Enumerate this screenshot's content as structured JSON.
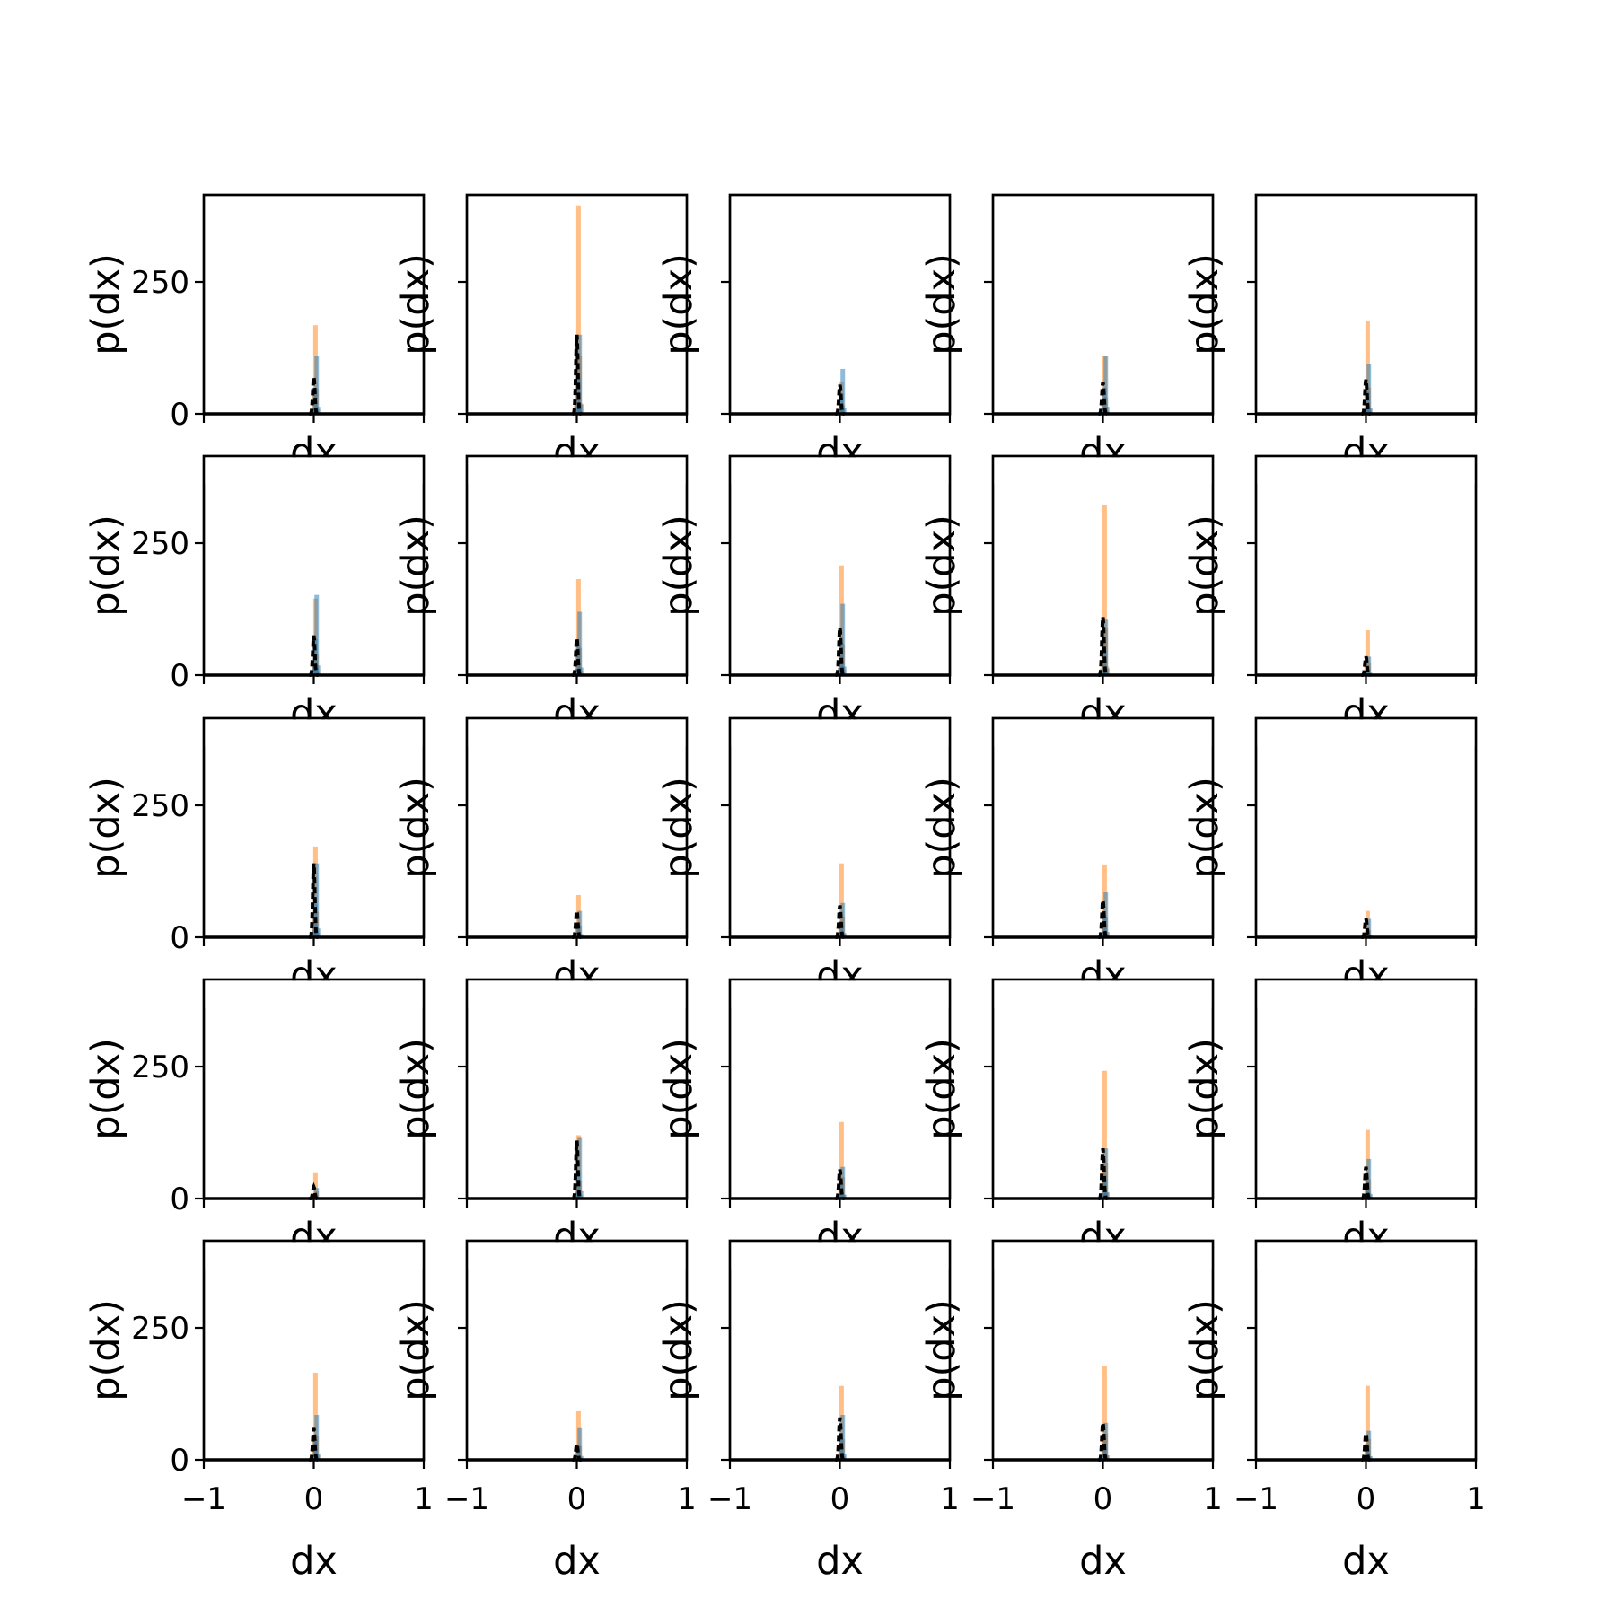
{
  "chart_data": {
    "type": "histogram-grid",
    "rows": 5,
    "cols": 5,
    "xlabel": "dx",
    "ylabel": "p(dx)",
    "xlim": [
      -1,
      1
    ],
    "ylim": [
      0,
      415
    ],
    "xticks": [
      -1,
      0,
      1
    ],
    "xtick_labels": [
      "−1",
      "0",
      "1"
    ],
    "yticks": [
      0,
      250
    ],
    "ytick_labels": [
      "0",
      "250"
    ],
    "grid": false,
    "colors": {
      "series_a": "#1f77b4",
      "series_b": "#ff7f0e",
      "estimate": "#000000"
    },
    "panels": [
      {
        "peak_a": 110,
        "peak_b": 168,
        "peak_est": 70
      },
      {
        "peak_a": 150,
        "peak_b": 395,
        "peak_est": 150
      },
      {
        "peak_a": 85,
        "peak_b": 60,
        "peak_est": 55
      },
      {
        "peak_a": 110,
        "peak_b": 110,
        "peak_est": 60
      },
      {
        "peak_a": 95,
        "peak_b": 177,
        "peak_est": 65
      },
      {
        "peak_a": 152,
        "peak_b": 145,
        "peak_est": 75
      },
      {
        "peak_a": 120,
        "peak_b": 182,
        "peak_est": 70
      },
      {
        "peak_a": 135,
        "peak_b": 208,
        "peak_est": 90
      },
      {
        "peak_a": 105,
        "peak_b": 322,
        "peak_est": 110
      },
      {
        "peak_a": 35,
        "peak_b": 85,
        "peak_est": 35
      },
      {
        "peak_a": 140,
        "peak_b": 172,
        "peak_est": 140
      },
      {
        "peak_a": 50,
        "peak_b": 80,
        "peak_est": 50
      },
      {
        "peak_a": 65,
        "peak_b": 140,
        "peak_est": 60
      },
      {
        "peak_a": 85,
        "peak_b": 138,
        "peak_est": 70
      },
      {
        "peak_a": 35,
        "peak_b": 50,
        "peak_est": 35
      },
      {
        "peak_a": 20,
        "peak_b": 48,
        "peak_est": 22
      },
      {
        "peak_a": 115,
        "peak_b": 120,
        "peak_est": 110
      },
      {
        "peak_a": 60,
        "peak_b": 145,
        "peak_est": 55
      },
      {
        "peak_a": 95,
        "peak_b": 242,
        "peak_est": 95
      },
      {
        "peak_a": 75,
        "peak_b": 130,
        "peak_est": 60
      },
      {
        "peak_a": 85,
        "peak_b": 165,
        "peak_est": 60
      },
      {
        "peak_a": 60,
        "peak_b": 92,
        "peak_est": 30
      },
      {
        "peak_a": 85,
        "peak_b": 140,
        "peak_est": 80
      },
      {
        "peak_a": 70,
        "peak_b": 177,
        "peak_est": 70
      },
      {
        "peak_a": 55,
        "peak_b": 140,
        "peak_est": 50
      }
    ]
  }
}
